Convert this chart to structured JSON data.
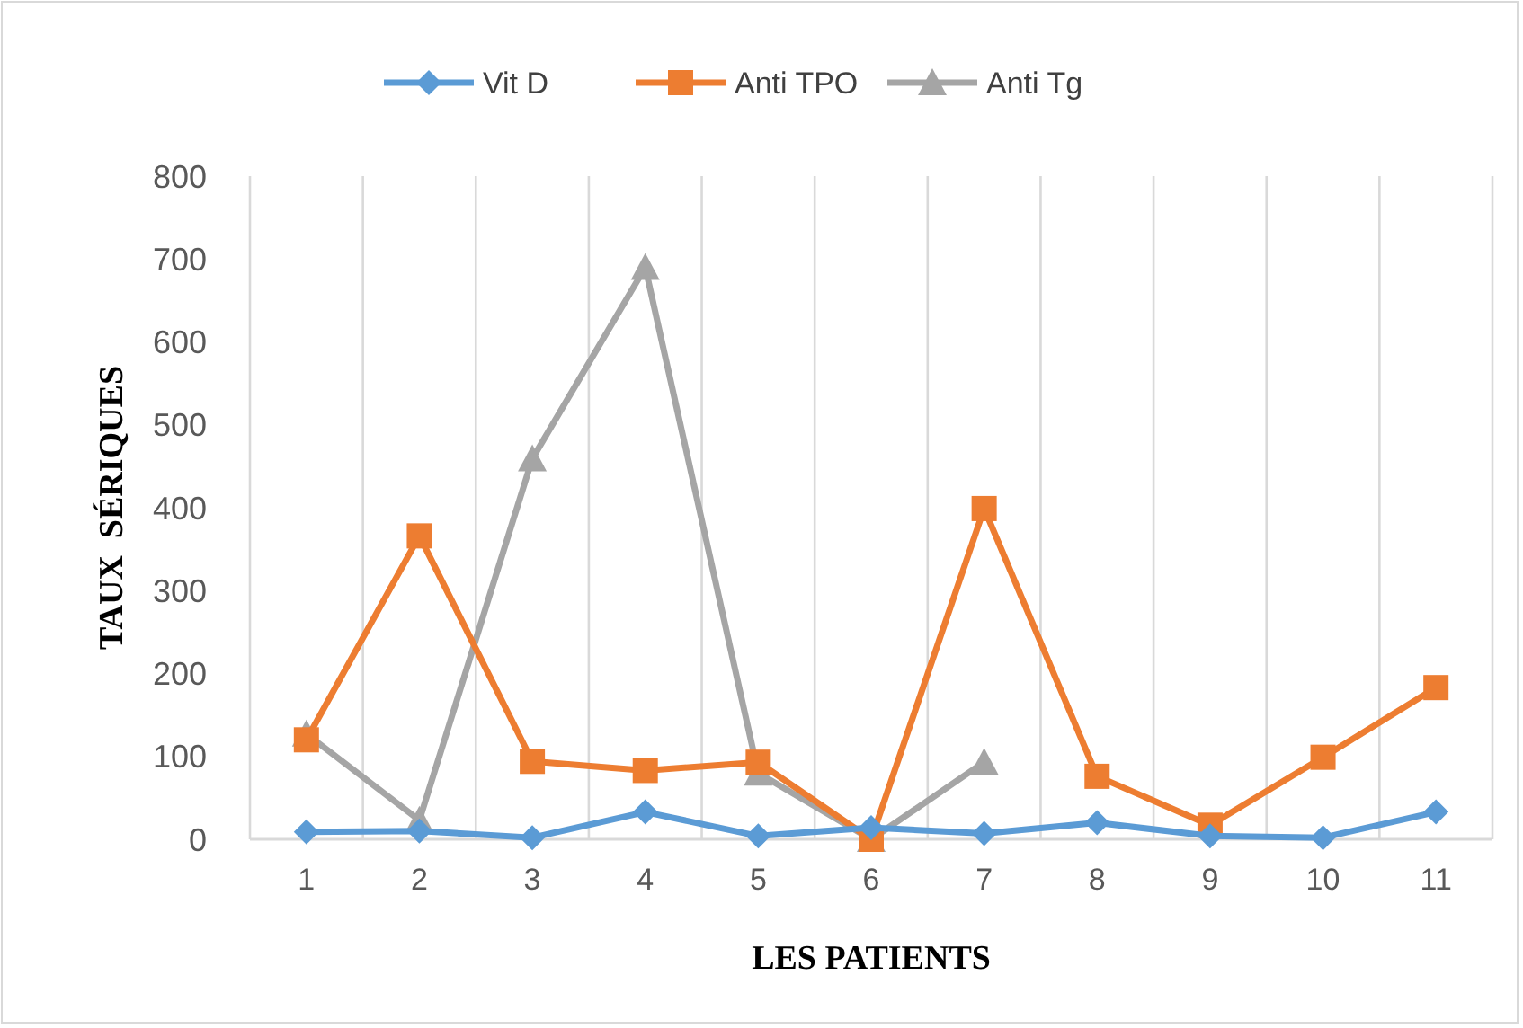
{
  "chart_data": {
    "type": "line",
    "xlabel": "LES PATIENTS",
    "ylabel": "TAUX  SÉRIQUES",
    "categories": [
      "1",
      "2",
      "3",
      "4",
      "5",
      "6",
      "7",
      "8",
      "9",
      "10",
      "11"
    ],
    "series": [
      {
        "name": "Vit D",
        "color": "#5b9bd5",
        "marker": "diamond",
        "values": [
          9,
          10,
          2,
          33,
          4,
          14,
          7,
          20,
          4,
          2,
          33
        ]
      },
      {
        "name": "Anti TPO",
        "color": "#ed7d31",
        "marker": "square",
        "values": [
          120,
          366,
          94,
          83,
          93,
          0,
          399,
          76,
          17,
          99,
          183
        ]
      },
      {
        "name": "Anti Tg",
        "color": "#a5a5a5",
        "marker": "triangle",
        "values": [
          127,
          23,
          459,
          690,
          80,
          0,
          93,
          null,
          null,
          null,
          null
        ]
      }
    ],
    "ylim": [
      0,
      800
    ],
    "yticks": [
      0,
      100,
      200,
      300,
      400,
      500,
      600,
      700,
      800
    ],
    "grid": "x",
    "legend": "top",
    "line_style": "solid"
  }
}
